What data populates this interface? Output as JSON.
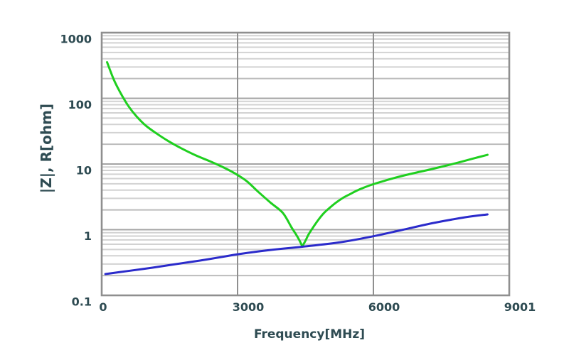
{
  "chart_data": {
    "type": "line",
    "title": "",
    "xlabel": "Frequency[MHz]",
    "ylabel": "|Z|, R[ohm]",
    "x_axis": {
      "scale": "linear",
      "range": [
        0,
        9000
      ],
      "tick_values": [
        0,
        3000,
        6000,
        9001
      ],
      "tick_labels": [
        "0",
        "3000",
        "6000",
        "9001"
      ],
      "gridline_values": [
        3000,
        6000
      ],
      "unit": "MHz"
    },
    "y_axis": {
      "scale": "log",
      "range": [
        0.1,
        1000
      ],
      "tick_values": [
        1000,
        100,
        10,
        1,
        0.1
      ],
      "tick_labels": [
        "1000",
        "100",
        "10",
        "1",
        "0.1"
      ],
      "minor_gridlines": "log-decades",
      "unit": "ohm"
    },
    "grid": true,
    "legend": false,
    "series": [
      {
        "name": "|Z|",
        "color": "#1fcf1f",
        "points": [
          [
            118,
            356
          ],
          [
            267,
            193
          ],
          [
            424,
            118
          ],
          [
            597,
            75
          ],
          [
            770,
            53
          ],
          [
            974,
            38.4
          ],
          [
            1210,
            29.2
          ],
          [
            1477,
            22.2
          ],
          [
            1760,
            17.3
          ],
          [
            2070,
            13.6
          ],
          [
            2390,
            11.0
          ],
          [
            2700,
            8.8
          ],
          [
            2940,
            7.2
          ],
          [
            3200,
            5.5
          ],
          [
            3470,
            3.7
          ],
          [
            3740,
            2.54
          ],
          [
            4000,
            1.8
          ],
          [
            4190,
            1.09
          ],
          [
            4290,
            0.85
          ],
          [
            4370,
            0.68
          ],
          [
            4430,
            0.555
          ],
          [
            4500,
            0.68
          ],
          [
            4570,
            0.85
          ],
          [
            4670,
            1.09
          ],
          [
            4780,
            1.4
          ],
          [
            4900,
            1.77
          ],
          [
            5030,
            2.14
          ],
          [
            5170,
            2.57
          ],
          [
            5320,
            3.03
          ],
          [
            5480,
            3.47
          ],
          [
            5650,
            3.98
          ],
          [
            5840,
            4.51
          ],
          [
            6020,
            4.98
          ],
          [
            6250,
            5.57
          ],
          [
            6500,
            6.23
          ],
          [
            6750,
            6.88
          ],
          [
            7020,
            7.6
          ],
          [
            7300,
            8.4
          ],
          [
            7590,
            9.4
          ],
          [
            7890,
            10.6
          ],
          [
            8180,
            12.0
          ],
          [
            8520,
            13.8
          ]
        ]
      },
      {
        "name": "R",
        "color": "#2b2bcb",
        "points": [
          [
            80,
            0.211
          ],
          [
            580,
            0.235
          ],
          [
            1120,
            0.264
          ],
          [
            1650,
            0.3
          ],
          [
            2170,
            0.339
          ],
          [
            2700,
            0.389
          ],
          [
            3030,
            0.425
          ],
          [
            3720,
            0.49
          ],
          [
            4430,
            0.55
          ],
          [
            5290,
            0.647
          ],
          [
            6020,
            0.8
          ],
          [
            6630,
            0.99
          ],
          [
            7340,
            1.27
          ],
          [
            8040,
            1.55
          ],
          [
            8520,
            1.71
          ]
        ]
      }
    ],
    "colors": {
      "text": "#2e4b52",
      "frame": "#8f8f8f",
      "vertical_grid": "#8f8f8f",
      "major_grid": "#a4a4a4",
      "sub_major_grid": "#bcbcbc",
      "minor_grid": "#d2d2d2",
      "plot_background": "#ffffff"
    }
  }
}
